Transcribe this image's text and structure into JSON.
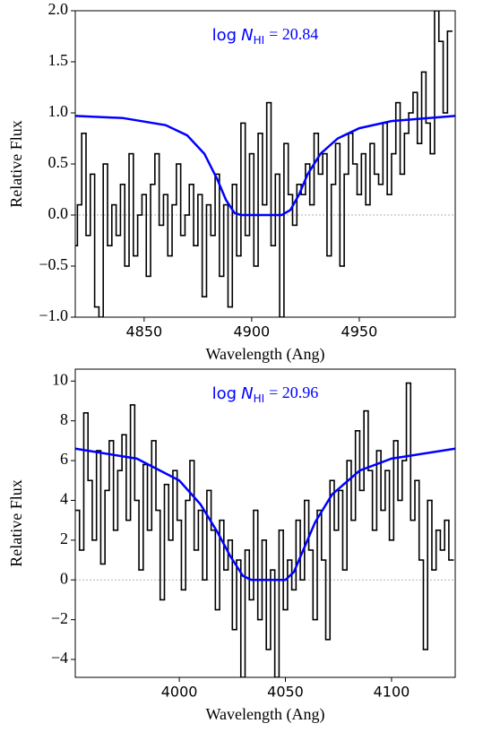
{
  "chart_data": [
    {
      "type": "line",
      "xlabel": "Wavelength (Ang)",
      "ylabel": "Relative Flux",
      "annotation": {
        "prefix": "log",
        "symbol": "N",
        "subscript": "HI",
        "value": "= 20.84",
        "color": "#0000ff"
      },
      "xlim": [
        4818,
        4994.6
      ],
      "ylim": [
        -1,
        2
      ],
      "xticks": [
        4850,
        4900,
        4950
      ],
      "yticks": [
        {
          "value": -1,
          "label": "−1.0"
        },
        {
          "value": -0.5,
          "label": "−0.5"
        },
        {
          "value": 0,
          "label": "0.0"
        },
        {
          "value": 0.5,
          "label": "0.5"
        },
        {
          "value": 1,
          "label": "1.0"
        },
        {
          "value": 1.5,
          "label": "1.5"
        },
        {
          "value": 2,
          "label": "2.0"
        }
      ],
      "reference_line": {
        "value": 0,
        "style": "dashed",
        "color": "#999999"
      },
      "series": [
        {
          "color": "#000000",
          "drawstyle": "steps-mid",
          "x": [
            4818,
            4820,
            4822,
            4824,
            4826,
            4828,
            4830,
            4832,
            4834,
            4836,
            4838,
            4840,
            4842,
            4844,
            4846,
            4848,
            4850,
            4852,
            4854,
            4856,
            4858,
            4860,
            4862,
            4864,
            4866,
            4868,
            4870,
            4872,
            4874,
            4876,
            4878,
            4880,
            4882,
            4884,
            4886,
            4888,
            4890,
            4892,
            4894,
            4896,
            4898,
            4900,
            4902,
            4904,
            4906,
            4908,
            4910,
            4912,
            4914,
            4916,
            4918,
            4920,
            4922,
            4924,
            4926,
            4928,
            4930,
            4932,
            4934,
            4936,
            4938,
            4940,
            4942,
            4944,
            4946,
            4948,
            4950,
            4952,
            4954,
            4956,
            4958,
            4960,
            4962,
            4964,
            4966,
            4968,
            4970,
            4972,
            4974,
            4976,
            4978,
            4980,
            4982,
            4984,
            4986,
            4988,
            4990,
            4992
          ],
          "values": [
            -0.3,
            0.1,
            0.8,
            -0.2,
            0.4,
            -0.9,
            -1.0,
            0.5,
            -0.3,
            0.1,
            -0.2,
            0.3,
            -0.5,
            0.6,
            -0.4,
            0.0,
            0.2,
            -0.6,
            0.3,
            0.6,
            -0.1,
            0.2,
            -0.4,
            0.1,
            0.5,
            -0.2,
            0.0,
            0.3,
            -0.3,
            0.2,
            -0.8,
            0.1,
            -0.2,
            0.4,
            -0.6,
            0.1,
            -0.9,
            0.3,
            -0.4,
            0.9,
            -0.2,
            0.6,
            -0.5,
            0.8,
            0.1,
            1.1,
            -0.3,
            0.4,
            -1.0,
            0.7,
            0.2,
            -0.1,
            0.3,
            0.2,
            0.5,
            0.1,
            0.8,
            0.4,
            0.6,
            -0.4,
            0.3,
            0.7,
            -0.5,
            0.4,
            0.8,
            0.5,
            0.2,
            0.6,
            0.1,
            0.7,
            0.4,
            0.3,
            0.9,
            0.2,
            0.6,
            1.1,
            0.4,
            0.8,
            1.0,
            1.2,
            0.7,
            1.4,
            0.9,
            0.6,
            2.0,
            1.7,
            1.0,
            1.8
          ]
        },
        {
          "color": "#0000ff",
          "x": [
            4818,
            4840,
            4860,
            4870,
            4878,
            4884,
            4888,
            4892,
            4895,
            4914,
            4918,
            4922,
            4926,
            4932,
            4940,
            4950,
            4965,
            4994.6
          ],
          "values": [
            0.97,
            0.95,
            0.88,
            0.78,
            0.6,
            0.35,
            0.15,
            0.02,
            0,
            0,
            0.05,
            0.2,
            0.4,
            0.6,
            0.75,
            0.85,
            0.92,
            0.97
          ]
        }
      ]
    },
    {
      "type": "line",
      "xlabel": "Wavelength (Ang)",
      "ylabel": "Relative Flux",
      "annotation": {
        "prefix": "log",
        "symbol": "N",
        "subscript": "HI",
        "value": "= 20.96",
        "color": "#0000ff"
      },
      "xlim": [
        3951,
        4130
      ],
      "ylim": [
        -4.9,
        10.6
      ],
      "xticks": [
        4000,
        4050,
        4100
      ],
      "yticks": [
        {
          "value": -4,
          "label": "−4"
        },
        {
          "value": -2,
          "label": "−2"
        },
        0,
        2,
        4,
        6,
        8,
        10
      ],
      "reference_line": {
        "value": 0,
        "style": "dashed",
        "color": "#999999"
      },
      "series": [
        {
          "color": "#000000",
          "drawstyle": "steps-mid",
          "x": [
            3952,
            3954,
            3956,
            3958,
            3960,
            3962,
            3964,
            3966,
            3968,
            3970,
            3972,
            3974,
            3976,
            3978,
            3980,
            3982,
            3984,
            3986,
            3988,
            3990,
            3992,
            3994,
            3996,
            3998,
            4000,
            4002,
            4004,
            4006,
            4008,
            4010,
            4012,
            4014,
            4016,
            4018,
            4020,
            4022,
            4024,
            4026,
            4028,
            4030,
            4032,
            4034,
            4036,
            4038,
            4040,
            4042,
            4044,
            4046,
            4048,
            4050,
            4052,
            4054,
            4056,
            4058,
            4060,
            4062,
            4064,
            4066,
            4068,
            4070,
            4072,
            4074,
            4076,
            4078,
            4080,
            4082,
            4084,
            4086,
            4088,
            4090,
            4092,
            4094,
            4096,
            4098,
            4100,
            4102,
            4104,
            4106,
            4108,
            4110,
            4112,
            4114,
            4116,
            4118,
            4120,
            4122,
            4124,
            4126,
            4128
          ],
          "values": [
            3.5,
            1.5,
            8.4,
            5.0,
            2.0,
            6.5,
            0.8,
            4.5,
            7.0,
            2.5,
            5.5,
            7.3,
            3.0,
            8.8,
            4.0,
            0.5,
            5.8,
            2.5,
            7.0,
            3.5,
            -1.0,
            4.8,
            2.0,
            5.5,
            3.0,
            -0.5,
            4.0,
            6.0,
            1.5,
            3.5,
            0.0,
            4.5,
            2.5,
            -1.5,
            3.0,
            0.5,
            2.0,
            -2.5,
            1.0,
            -4.9,
            1.5,
            -1.0,
            3.5,
            -2.0,
            2.0,
            -3.5,
            0.5,
            -4.9,
            2.5,
            -1.5,
            1.0,
            -0.5,
            3.0,
            0.0,
            4.0,
            1.5,
            -2.0,
            3.5,
            1.0,
            -3.0,
            5.0,
            2.5,
            4.5,
            0.5,
            6.0,
            3.0,
            7.5,
            4.5,
            8.5,
            5.5,
            2.5,
            6.5,
            3.5,
            5.5,
            2.0,
            7.0,
            4.0,
            6.0,
            9.9,
            3.0,
            5.0,
            1.0,
            -3.5,
            4.0,
            0.5,
            2.5,
            1.5,
            3.0,
            1.0
          ]
        },
        {
          "color": "#0000ff",
          "x": [
            3951,
            3980,
            4000,
            4010,
            4018,
            4024,
            4030,
            4034,
            4050,
            4054,
            4058,
            4064,
            4072,
            4085,
            4100,
            4130
          ],
          "values": [
            6.6,
            6.1,
            5.0,
            3.8,
            2.4,
            1.2,
            0.2,
            0,
            0,
            0.4,
            1.4,
            2.9,
            4.3,
            5.5,
            6.1,
            6.6
          ]
        }
      ]
    }
  ]
}
